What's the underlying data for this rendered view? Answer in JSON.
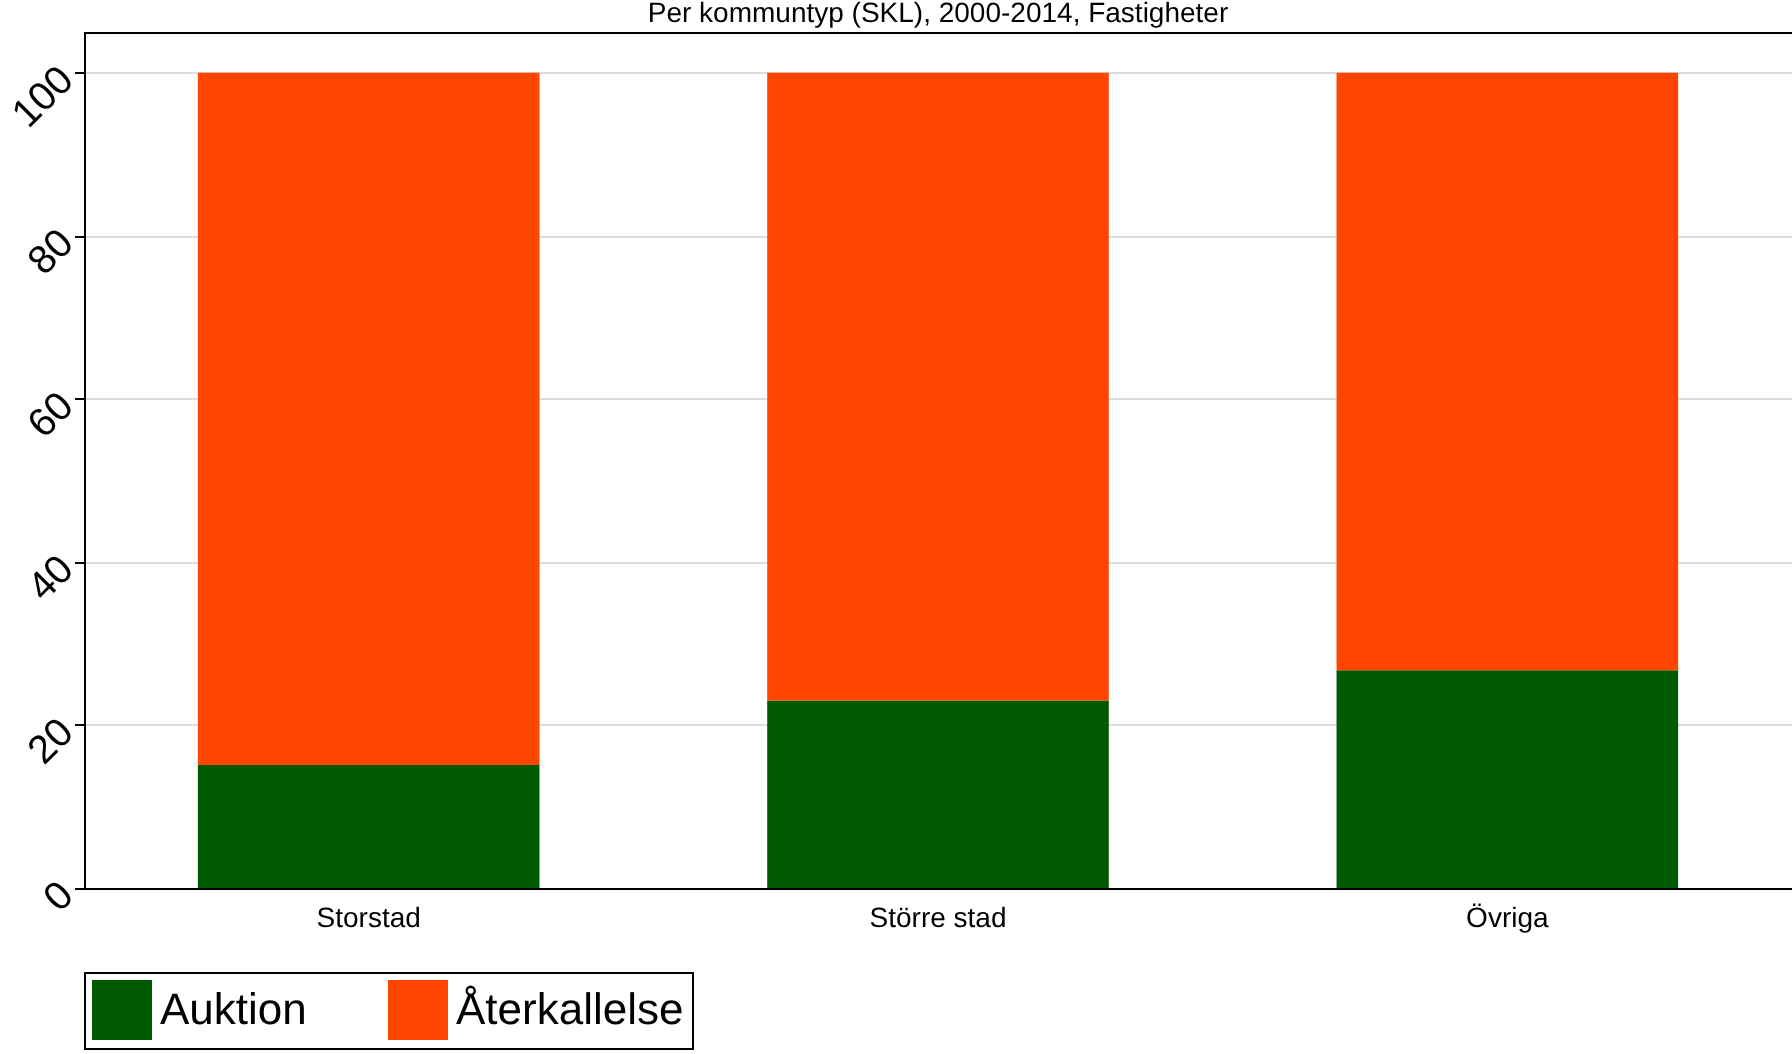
{
  "chart_data": {
    "type": "bar",
    "title": "Per kommuntyp (SKL), 2000-2014, Fastigheter",
    "categories": [
      "Storstad",
      "Större stad",
      "Övriga"
    ],
    "series": [
      {
        "name": "Auktion",
        "color": "#005a00",
        "values": [
          15.1,
          23.0,
          26.7
        ]
      },
      {
        "name": "Återkallelse",
        "color": "#ff4500",
        "values": [
          84.9,
          77.0,
          73.3
        ]
      }
    ],
    "stacked": true,
    "ylim": [
      0,
      105
    ],
    "yticks": [
      0,
      20,
      40,
      60,
      80,
      100
    ],
    "grid": "y",
    "legend": "bottom"
  }
}
